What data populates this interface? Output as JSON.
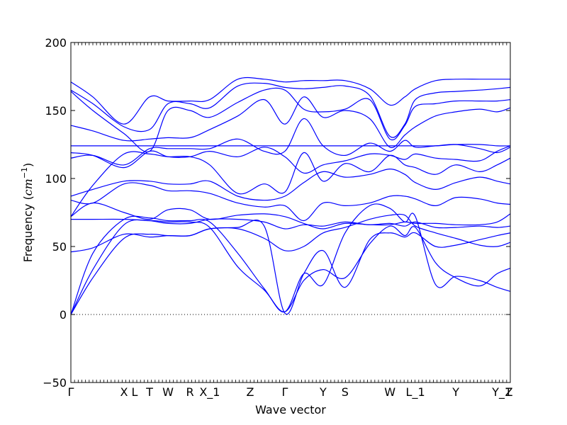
{
  "chart_data": {
    "type": "line",
    "title": "",
    "xlabel": "Wave vector",
    "ylabel_text": "Frequency (",
    "ylabel_unit": "cm",
    "ylabel_exp": "−1",
    "ylabel_close": ")",
    "ylim": [
      -50,
      200
    ],
    "yticks": [
      -50,
      0,
      50,
      100,
      150,
      200
    ],
    "ytick_labels": [
      "−50",
      "0",
      "50",
      "100",
      "150",
      "200"
    ],
    "xlim": [
      0,
      1
    ],
    "x_labels": [
      {
        "x": 0.0,
        "label": "Γ"
      },
      {
        "x": 0.121,
        "label": "X"
      },
      {
        "x": 0.145,
        "label": "L"
      },
      {
        "x": 0.179,
        "label": "T"
      },
      {
        "x": 0.221,
        "label": "W"
      },
      {
        "x": 0.271,
        "label": "R"
      },
      {
        "x": 0.316,
        "label": "X_1"
      },
      {
        "x": 0.408,
        "label": "Z"
      },
      {
        "x": 0.487,
        "label": "Γ"
      },
      {
        "x": 0.574,
        "label": "Y"
      },
      {
        "x": 0.624,
        "label": "S"
      },
      {
        "x": 0.726,
        "label": "W"
      },
      {
        "x": 0.784,
        "label": "L_1"
      },
      {
        "x": 0.876,
        "label": "Y"
      },
      {
        "x": 0.981,
        "label": "Y_1"
      },
      {
        "x": 0.997,
        "label": "Z"
      }
    ],
    "zero_line": {
      "y": 0,
      "style": "dotted"
    },
    "line_color": "#0000ff",
    "grid": false,
    "series": [
      {
        "values": [
          0,
          27,
          56,
          59,
          58,
          58,
          63,
          64,
          65,
          1,
          30,
          47,
          20,
          55,
          60,
          57,
          60,
          50,
          51,
          55,
          58,
          60
        ]
      },
      {
        "values": [
          0,
          33,
          66,
          69,
          68,
          68,
          64,
          35,
          18,
          2,
          25,
          33,
          27,
          52,
          65,
          58,
          64,
          38,
          27,
          21,
          30,
          34
        ]
      },
      {
        "values": [
          0,
          45,
          70,
          71,
          69,
          69,
          68,
          45,
          19,
          2,
          30,
          22,
          60,
          80,
          78,
          68,
          72,
          22,
          28,
          25,
          20,
          17
        ]
      },
      {
        "values": [
          46,
          49,
          59,
          57,
          58,
          58,
          63,
          63,
          56,
          47,
          50,
          60,
          64,
          70,
          73,
          73,
          65,
          60,
          56,
          51,
          50,
          53
        ]
      },
      {
        "values": [
          70,
          70,
          70,
          69,
          67,
          67,
          70,
          70,
          68,
          63,
          66,
          65,
          68,
          66,
          67,
          65,
          68,
          64,
          64,
          65,
          64,
          65
        ]
      },
      {
        "values": [
          72,
          82,
          75,
          70,
          77,
          77,
          70,
          73,
          74,
          72,
          67,
          63,
          67,
          66,
          66,
          68,
          67,
          67,
          66,
          66,
          68,
          74
        ]
      },
      {
        "values": [
          84,
          82,
          96,
          95,
          91,
          91,
          89,
          82,
          79,
          80,
          69,
          82,
          80,
          82,
          87,
          87,
          85,
          80,
          86,
          85,
          82,
          81
        ]
      },
      {
        "values": [
          87,
          92,
          98,
          98,
          96,
          96,
          98,
          87,
          84,
          87,
          97,
          105,
          101,
          103,
          107,
          103,
          97,
          92,
          97,
          101,
          98,
          96
        ]
      },
      {
        "values": [
          72,
          95,
          118,
          118,
          116,
          116,
          110,
          89,
          96,
          90,
          119,
          98,
          111,
          105,
          117,
          110,
          108,
          103,
          110,
          105,
          110,
          115
        ]
      },
      {
        "values": [
          119,
          117,
          108,
          120,
          116,
          116,
          120,
          116,
          123,
          116,
          104,
          110,
          113,
          118,
          117,
          114,
          118,
          115,
          114,
          113,
          120,
          124
        ]
      },
      {
        "values": [
          124,
          124,
          124,
          124,
          124,
          124,
          124,
          124,
          124,
          124,
          124,
          124,
          124,
          124,
          124,
          124,
          124,
          124,
          125,
          125,
          124,
          124
        ]
      },
      {
        "values": [
          115,
          117,
          110,
          122,
          122,
          122,
          122,
          129,
          120,
          120,
          144,
          124,
          117,
          126,
          120,
          128,
          123,
          124,
          125,
          122,
          119,
          123
        ]
      },
      {
        "values": [
          139,
          135,
          128,
          129,
          130,
          130,
          136,
          146,
          158,
          140,
          160,
          145,
          150,
          144,
          123,
          132,
          138,
          146,
          149,
          151,
          149,
          152
        ]
      },
      {
        "values": [
          164,
          150,
          133,
          120,
          150,
          150,
          145,
          156,
          165,
          165,
          151,
          149,
          151,
          158,
          129,
          139,
          153,
          155,
          157,
          157,
          157,
          158
        ]
      },
      {
        "values": [
          165,
          155,
          138,
          136,
          155,
          155,
          152,
          168,
          170,
          167,
          166,
          167,
          168,
          161,
          131,
          140,
          158,
          163,
          164,
          165,
          166,
          167
        ]
      },
      {
        "values": [
          171,
          160,
          140,
          160,
          157,
          157,
          158,
          173,
          173,
          171,
          172,
          172,
          172,
          166,
          154,
          160,
          166,
          172,
          173,
          173,
          173,
          173
        ]
      }
    ],
    "series_x": [
      0,
      0.05,
      0.121,
      0.179,
      0.221,
      0.271,
      0.316,
      0.38,
      0.44,
      0.487,
      0.53,
      0.574,
      0.624,
      0.68,
      0.726,
      0.76,
      0.784,
      0.83,
      0.876,
      0.93,
      0.97,
      1.0
    ]
  }
}
